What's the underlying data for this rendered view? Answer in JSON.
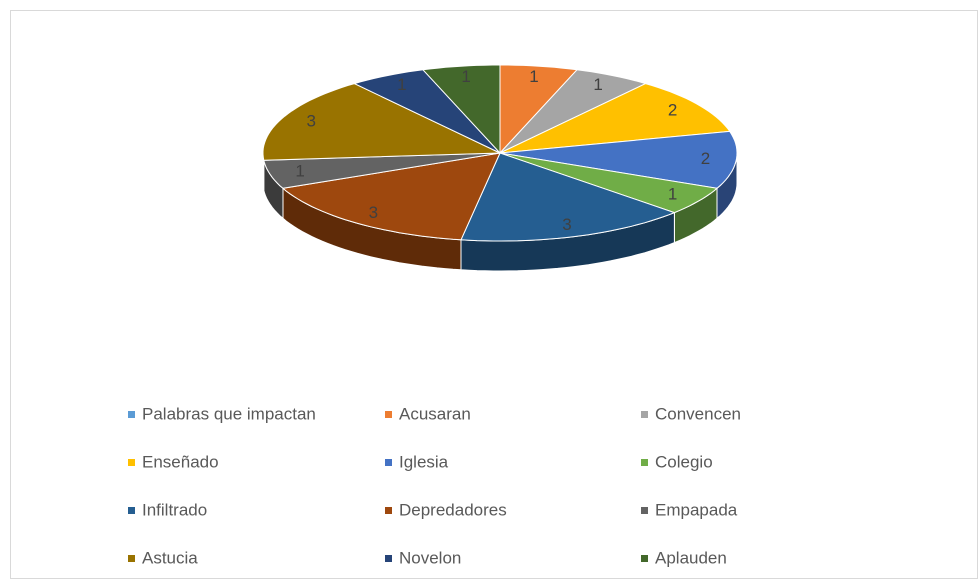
{
  "chart_data": {
    "type": "pie",
    "categories": [
      "Palabras que impactan",
      "Acusaran",
      "Convencen",
      "Enseñado",
      "Iglesia",
      "Colegio",
      "Infiltrado",
      "Depredadores",
      "Empapada",
      "Astucia",
      "Novelon",
      "Aplauden"
    ],
    "values": [
      null,
      1,
      1,
      2,
      2,
      1,
      3,
      3,
      1,
      3,
      1,
      1
    ],
    "colors": [
      "#5b9bd5",
      "#ed7d31",
      "#a5a5a5",
      "#ffc000",
      "#4472c4",
      "#70ad47",
      "#255e91",
      "#9e480e",
      "#636363",
      "#997300",
      "#264478",
      "#43682b"
    ],
    "legend": "bottom"
  }
}
